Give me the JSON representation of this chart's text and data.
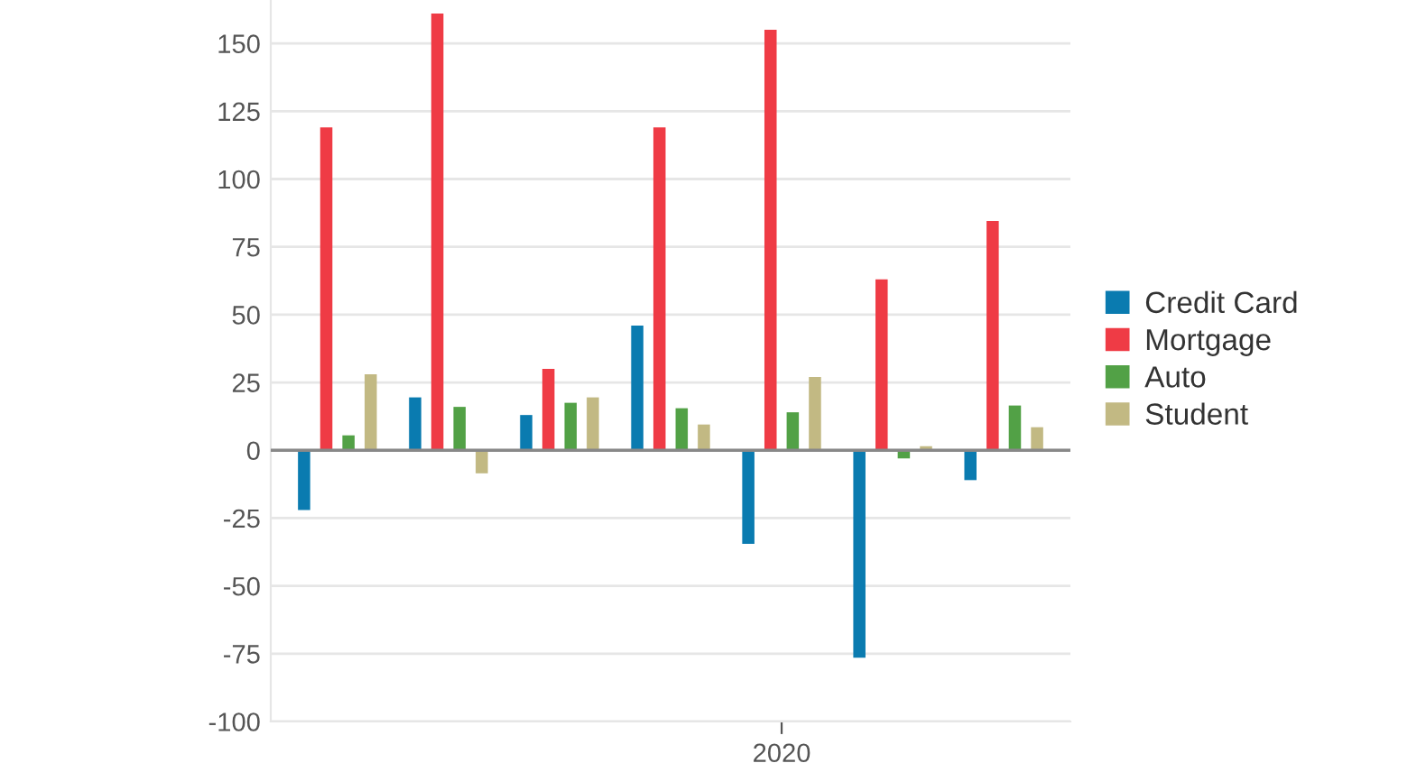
{
  "chart_data": {
    "type": "bar",
    "categories": [
      null,
      null,
      null,
      null,
      "2020",
      null,
      null
    ],
    "series": [
      {
        "name": "Credit Card",
        "color": "#0a7bb0",
        "values": [
          -22,
          19.5,
          13,
          46,
          -34.5,
          -76.5,
          -11
        ]
      },
      {
        "name": "Mortgage",
        "color": "#ef3b45",
        "values": [
          119,
          161,
          30,
          119,
          155,
          63,
          84.5
        ]
      },
      {
        "name": "Auto",
        "color": "#52a146",
        "values": [
          5.5,
          16,
          17.5,
          15.5,
          14,
          -3,
          16.5
        ]
      },
      {
        "name": "Student",
        "color": "#c2b983",
        "values": [
          28,
          -8.5,
          19.5,
          9.5,
          27,
          1.5,
          8.5
        ]
      }
    ],
    "ylim": [
      -100,
      166
    ],
    "yticks": [
      -100,
      -75,
      -50,
      -25,
      0,
      25,
      50,
      75,
      100,
      125,
      150
    ],
    "ref_lines": [
      {
        "axis": "y",
        "value": 0,
        "color": "#888888"
      }
    ],
    "grid": "y",
    "legend": "right"
  }
}
